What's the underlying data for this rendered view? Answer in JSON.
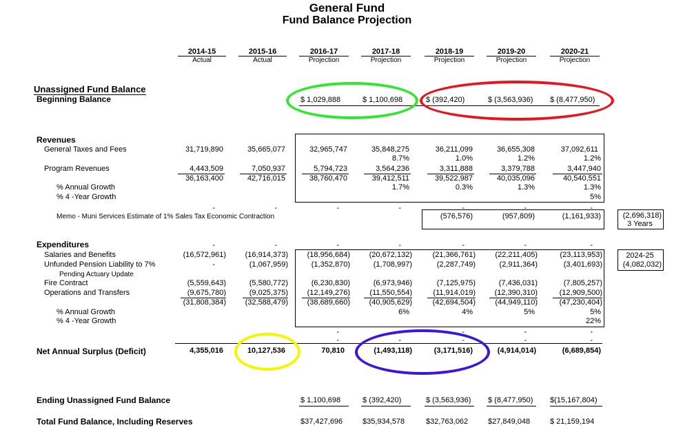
{
  "title": "General Fund",
  "subtitle": "Fund Balance Projection",
  "colors": {
    "green": "#2ee82e",
    "red": "#e8141d",
    "yellow": "#f5f500",
    "blue": "#3c14e0"
  },
  "columns": [
    {
      "year": "2014-15",
      "type": "Actual"
    },
    {
      "year": "2015-16",
      "type": "Actual"
    },
    {
      "year": "2016-17",
      "type": "Projection"
    },
    {
      "year": "2017-18",
      "type": "Projection"
    },
    {
      "year": "2018-19",
      "type": "Projection"
    },
    {
      "year": "2019-20",
      "type": "Projection"
    },
    {
      "year": "2020-21",
      "type": "Projection"
    }
  ],
  "sections": {
    "unassigned": "Unassigned Fund Balance",
    "beginning": "Beginning Balance",
    "revenues": "Revenues",
    "expenditures": "Expenditures"
  },
  "beginning_balance": [
    "$ 1,029,888",
    "$ 1,100,698",
    "$ (392,420)",
    "$ (3,563,936)",
    "$ (8,477,950)"
  ],
  "revenues": {
    "general_label": "General Taxes and Fees",
    "general": [
      "31,719,890",
      "35,665,077",
      "32,965,747",
      "35,848,275",
      "36,211,099",
      "36,655,308",
      "37,092,611"
    ],
    "general_pct": [
      "8.7%",
      "1.0%",
      "1.2%",
      "1.2%"
    ],
    "program_label": "Program Revenues",
    "program": [
      "4,443,509",
      "7,050,937",
      "5,794,723",
      "3,564,236",
      "3,311,888",
      "3,379,788",
      "3,447,940"
    ],
    "total": [
      "36,163,400",
      "42,716,015",
      "38,760,470",
      "39,412,511",
      "39,522,987",
      "40,035,096",
      "40,540,551"
    ],
    "annual_label": "% Annual Growth",
    "annual": [
      "1.7%",
      "0.3%",
      "1.3%",
      "1.3%"
    ],
    "four_label": "% 4 -Year Growth",
    "four": "5%"
  },
  "dashes": "-",
  "memo": {
    "label": "Memo - Muni Services Estimate of 1% Sales Tax Economic Contraction",
    "values": [
      "(576,576)",
      "(957,809)",
      "(1,161,933)"
    ],
    "total": "(2,696,318)",
    "total_note": "3 Years"
  },
  "expenditures": {
    "salaries_label": "Salaries and Benefits",
    "salaries": [
      "(16,572,961)",
      "(16,914,373)",
      "(18,956,684)",
      "(20,672,132)",
      "(21,366,761)",
      "(22,211,405)",
      "(23,113,953)"
    ],
    "pension_label": "Unfunded Pension Liability to 7%",
    "pension_note": "Pending Actuary Update",
    "pension": [
      "(1,067,959)",
      "(1,352,870)",
      "(1,708,997)",
      "(2,287,749)",
      "(2,911,364)",
      "(3,401,693)"
    ],
    "pension_side_year": "2024-25",
    "pension_side_value": "(4,082,032)",
    "fire_label": "Fire Contract",
    "fire": [
      "(5,559,643)",
      "(5,580,772)",
      "(6,230,830)",
      "(6,973,946)",
      "(7,125,975)",
      "(7,436,031)",
      "(7,805,257)"
    ],
    "ops_label": "Operations and Transfers",
    "ops": [
      "(9,675,780)",
      "(9,025,375)",
      "(12,149,276)",
      "(11,550,554)",
      "(11,914,019)",
      "(12,390,310)",
      "(12,909,500)"
    ],
    "total": [
      "(31,808,384)",
      "(32,588,479)",
      "(38,689,660)",
      "(40,905,629)",
      "(42,694,504)",
      "(44,949,110)",
      "(47,230,404)"
    ],
    "annual_label": "% Annual Growth",
    "annual": [
      "6%",
      "4%",
      "5%",
      "5%"
    ],
    "four_label": "% 4 -Year Growth",
    "four": "22%"
  },
  "net": {
    "label": "Net Annual Surplus (Deficit)",
    "values": [
      "4,355,016",
      "10,127,536",
      "70,810",
      "(1,493,118)",
      "(3,171,516)",
      "(4,914,014)",
      "(6,689,854)"
    ]
  },
  "ending": {
    "label": "Ending Unassigned Fund Balance",
    "values": [
      "$ 1,100,698",
      "$ (392,420)",
      "$ (3,563,936)",
      "$ (8,477,950)",
      "$(15,167,804)"
    ]
  },
  "total_fund": {
    "label": "Total Fund Balance, Including Reserves",
    "values": [
      "$37,427,696",
      "$35,934,578",
      "$32,763,062",
      "$27,849,048",
      "$ 21,159,194"
    ]
  }
}
